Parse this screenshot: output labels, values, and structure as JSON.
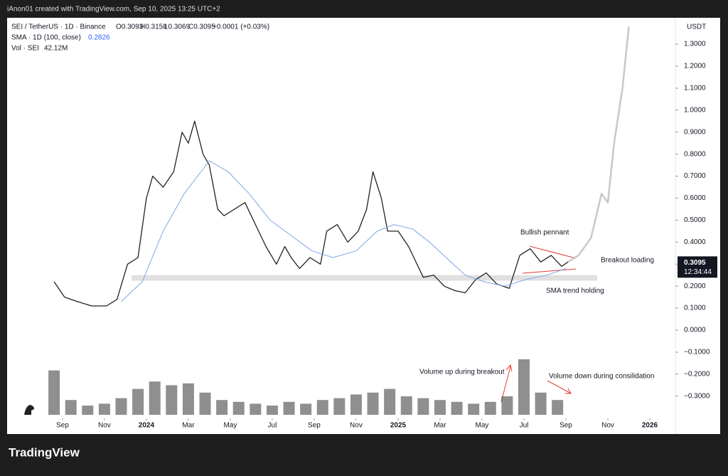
{
  "credit": "iAnon01 created with TradingView.com, Sep 10, 2025 13:25 UTC+2",
  "legend": {
    "symbol": "SEI / TetherUS · 1D · Binance",
    "open": "O0.3093",
    "high": "H0.3150",
    "low": "L0.3069",
    "close": "C0.3095",
    "change": "+0.0001 (+0.03%)",
    "sma_label": "SMA · 1D (100, close)",
    "sma_value": "0.2826",
    "vol_label": "Vol · SEI",
    "vol_value": "42.12M"
  },
  "brand": "TradingView",
  "chart_data": {
    "type": "line",
    "currency": "USDT",
    "last_price": 0.3095,
    "countdown": "12:34:44",
    "xlim": [
      -2.64,
      29.22
    ],
    "ylim": [
      -0.38,
      1.42
    ],
    "xticks": [
      {
        "value": 0,
        "label": "Sep"
      },
      {
        "value": 2,
        "label": "Nov"
      },
      {
        "value": 4,
        "label": "2024"
      },
      {
        "value": 6,
        "label": "Mar"
      },
      {
        "value": 8,
        "label": "May"
      },
      {
        "value": 10,
        "label": "Jul"
      },
      {
        "value": 12,
        "label": "Sep"
      },
      {
        "value": 14,
        "label": "Nov"
      },
      {
        "value": 16,
        "label": "2025"
      },
      {
        "value": 18,
        "label": "Mar"
      },
      {
        "value": 20,
        "label": "May"
      },
      {
        "value": 22,
        "label": "Jul"
      },
      {
        "value": 24,
        "label": "Sep"
      },
      {
        "value": 26,
        "label": "Nov"
      },
      {
        "value": 28,
        "label": "2026"
      }
    ],
    "yticks": [
      {
        "value": 1.3,
        "label": "1.3000"
      },
      {
        "value": 1.2,
        "label": "1.2000"
      },
      {
        "value": 1.1,
        "label": "1.1000"
      },
      {
        "value": 1.0,
        "label": "1.0000"
      },
      {
        "value": 0.9,
        "label": "0.9000"
      },
      {
        "value": 0.8,
        "label": "0.8000"
      },
      {
        "value": 0.7,
        "label": "0.7000"
      },
      {
        "value": 0.6,
        "label": "0.6000"
      },
      {
        "value": 0.5,
        "label": "0.5000"
      },
      {
        "value": 0.4,
        "label": "0.4000"
      },
      {
        "value": 0.3,
        "label": "0.3000"
      },
      {
        "value": 0.2,
        "label": "0.2000"
      },
      {
        "value": 0.1,
        "label": "0.1000"
      },
      {
        "value": 0,
        "label": "0.0000"
      },
      {
        "value": -0.1,
        "label": "−0.1000"
      },
      {
        "value": -0.2,
        "label": "−0.2000"
      },
      {
        "value": -0.3,
        "label": "−0.3000"
      }
    ],
    "zones": [
      {
        "from": 0.225,
        "to": 0.25,
        "color": "#e0e0e0"
      }
    ],
    "series": [
      {
        "name": "SEI / TetherUS",
        "color": "#222222",
        "width": 1.3,
        "x": [
          -0.4,
          0.1,
          0.7,
          1.4,
          2.1,
          2.6,
          3.1,
          3.6,
          4.0,
          4.3,
          4.8,
          5.3,
          5.7,
          6.0,
          6.3,
          6.7,
          7.0,
          7.4,
          7.7,
          8.2,
          8.7,
          9.2,
          9.7,
          10.2,
          10.6,
          10.9,
          11.3,
          11.8,
          12.3,
          12.6,
          13.1,
          13.6,
          14.1,
          14.5,
          14.8,
          15.2,
          15.5,
          16.0,
          16.5,
          16.8,
          17.2,
          17.7,
          18.2,
          18.7,
          19.2,
          19.7,
          20.2,
          20.7,
          21.3,
          21.8,
          22.3,
          22.8,
          23.3,
          23.8,
          24.1
        ],
        "values": [
          0.22,
          0.15,
          0.13,
          0.11,
          0.11,
          0.14,
          0.3,
          0.33,
          0.6,
          0.7,
          0.65,
          0.72,
          0.9,
          0.85,
          0.95,
          0.8,
          0.75,
          0.55,
          0.52,
          0.55,
          0.58,
          0.48,
          0.38,
          0.3,
          0.38,
          0.33,
          0.28,
          0.33,
          0.3,
          0.45,
          0.48,
          0.4,
          0.45,
          0.55,
          0.72,
          0.6,
          0.45,
          0.45,
          0.38,
          0.32,
          0.24,
          0.25,
          0.2,
          0.18,
          0.17,
          0.23,
          0.26,
          0.21,
          0.19,
          0.34,
          0.37,
          0.31,
          0.34,
          0.29,
          0.31
        ]
      },
      {
        "name": "Projection",
        "color": "#c8c8c8",
        "width": 2.5,
        "x": [
          24.1,
          24.6,
          25.2,
          25.7,
          26.0,
          26.3,
          26.7,
          27.0
        ],
        "values": [
          0.31,
          0.34,
          0.42,
          0.62,
          0.58,
          0.85,
          1.1,
          1.38
        ]
      },
      {
        "name": "SMA",
        "color": "#7fa6e6",
        "width": 1,
        "x": [
          2.8,
          3.8,
          4.8,
          5.8,
          7.0,
          7.9,
          8.9,
          9.9,
          10.9,
          11.9,
          12.9,
          14.0,
          15.0,
          15.8,
          16.7,
          17.5,
          18.4,
          19.2,
          20.1,
          21.1,
          22.1,
          23.1,
          24.0
        ],
        "values": [
          0.13,
          0.22,
          0.45,
          0.62,
          0.77,
          0.72,
          0.62,
          0.5,
          0.43,
          0.36,
          0.33,
          0.36,
          0.45,
          0.48,
          0.46,
          0.4,
          0.32,
          0.25,
          0.22,
          0.2,
          0.23,
          0.25,
          0.28
        ]
      }
    ],
    "volume": {
      "color": "#333333",
      "ylim": [
        0,
        150
      ],
      "x": [
        -0.4,
        0.4,
        1.2,
        2.0,
        2.8,
        3.6,
        4.4,
        5.2,
        6.0,
        6.8,
        7.6,
        8.4,
        9.2,
        10.0,
        10.8,
        11.6,
        12.4,
        13.2,
        14.0,
        14.8,
        15.6,
        16.4,
        17.2,
        18.0,
        18.8,
        19.6,
        20.4,
        21.2,
        22.0,
        22.8,
        23.6
      ],
      "values": [
        120,
        40,
        25,
        30,
        45,
        70,
        90,
        80,
        85,
        60,
        40,
        35,
        30,
        25,
        35,
        30,
        40,
        45,
        55,
        60,
        70,
        50,
        45,
        40,
        35,
        30,
        35,
        50,
        150,
        60,
        40
      ]
    },
    "annotations": [
      "Bullish pennant",
      "Breakout loading",
      "SMA trend holding",
      "Volume up during breakout",
      "Volume down during consilidation"
    ]
  }
}
